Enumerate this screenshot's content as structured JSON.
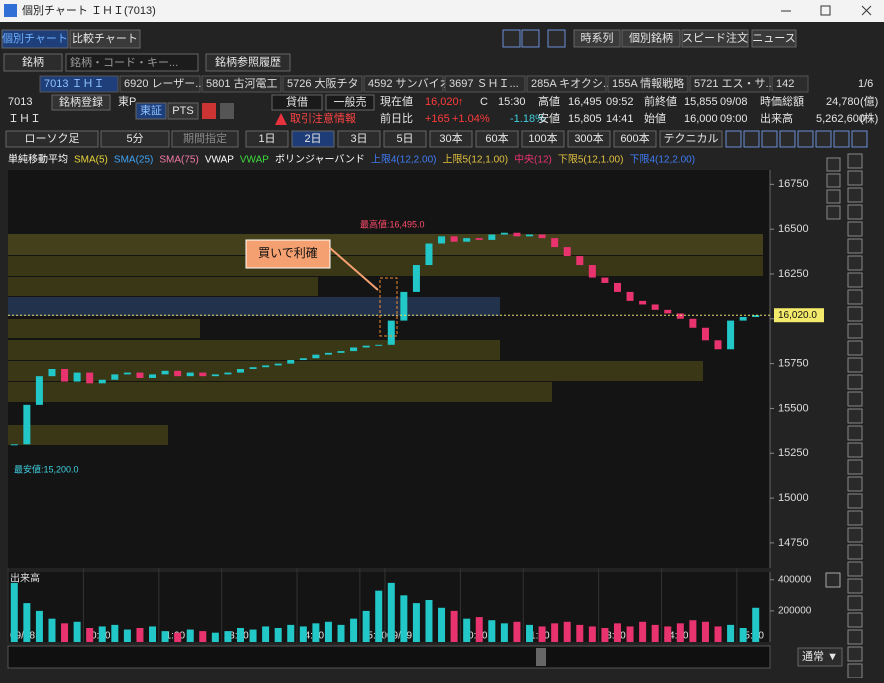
{
  "title_bar": {
    "title": "個別チャート ＩＨＩ(7013)"
  },
  "tabs": [
    "個別チャート",
    "比較チャート"
  ],
  "top_buttons": [
    "時系列",
    "個別銘柄",
    "スピード注文",
    "ニュース"
  ],
  "search": {
    "type": "銘柄",
    "placeholder": "銘柄・コード・キー...",
    "history": "銘柄参照履歴"
  },
  "stock_tabs": [
    "7013 ＩＨＩ",
    "6920 レーザー...",
    "5801 古河電工",
    "5726 大阪チタ",
    "4592 サンバイオ",
    "3697 ＳＨＩ...",
    "285A キオクシ...",
    "155A 情報戦略",
    "5721 エス・サ...",
    "142"
  ],
  "page": "1/6",
  "quote": {
    "code": "7013",
    "name": "ＩＨＩ",
    "register": "銘柄登録",
    "market": "東P",
    "exchange": "東証",
    "pts": "PTS",
    "margin": "貸借",
    "short": "一般売",
    "warning": "取引注意情報",
    "row1": [
      "現在値",
      "16,020",
      "↑",
      "C",
      "15:30",
      "高値",
      "16,495",
      "09:52",
      "前終値",
      "15,855",
      "09/08",
      "時価総額",
      "24,780",
      "(億)"
    ],
    "row2": [
      "前日比",
      "+165",
      "+1.04%",
      "-1.18%",
      "安値",
      "15,805",
      "14:41",
      "始値",
      "16,000",
      "09:00",
      "出来高",
      "5,262,600",
      "(株)"
    ]
  },
  "controls": {
    "chart_type": "ローソク足",
    "interval": "5分",
    "period": "期間指定",
    "ranges": [
      "1日",
      "2日",
      "3日",
      "5日",
      "30本",
      "60本",
      "100本",
      "300本",
      "600本"
    ],
    "selected_range_index": 1,
    "technical": "テクニカル"
  },
  "legend": [
    {
      "label": "単純移動平均",
      "color": "#ffffff"
    },
    {
      "label": "SMA(5)",
      "color": "#e6d33a"
    },
    {
      "label": "SMA(25)",
      "color": "#3fa3f5"
    },
    {
      "label": "SMA(75)",
      "color": "#f07aa8"
    },
    {
      "label": "VWAP",
      "color": "#ffffff"
    },
    {
      "label": "VWAP",
      "color": "#3ddc3d"
    },
    {
      "label": "ボリンジャーバンド",
      "color": "#ffffff"
    },
    {
      "label": "上限4(12,2.00)",
      "color": "#3f7cf5"
    },
    {
      "label": "上限5(12,1.00)",
      "color": "#e0c040"
    },
    {
      "label": "中央(12)",
      "color": "#e8336e"
    },
    {
      "label": "下限5(12,1.00)",
      "color": "#e0c040"
    },
    {
      "label": "下限4(12,2.00)",
      "color": "#3f7cf5"
    }
  ],
  "chart_data": [
    {
      "type": "candlestick",
      "up_color": "#22c8c8",
      "down_color": "#e8336e",
      "categories": [
        "09/08",
        null,
        null,
        null,
        null,
        null,
        "10:00",
        null,
        null,
        null,
        null,
        null,
        "11:00",
        null,
        null,
        null,
        null,
        "13:00",
        null,
        null,
        null,
        null,
        null,
        "14:00",
        null,
        null,
        null,
        null,
        "15:00",
        null,
        "09/09",
        null,
        null,
        null,
        null,
        null,
        "10:00",
        null,
        null,
        null,
        null,
        "11:00",
        null,
        null,
        null,
        null,
        null,
        "13:00",
        null,
        null,
        null,
        null,
        "14:00",
        null,
        null,
        null,
        null,
        null,
        "15:00",
        null
      ],
      "values": [
        15300,
        15520,
        15680,
        15720,
        15650,
        15700,
        15640,
        15660,
        15690,
        15700,
        15670,
        15690,
        15710,
        15680,
        15700,
        15680,
        15690,
        15700,
        15720,
        15730,
        15740,
        15750,
        15770,
        15780,
        15800,
        15810,
        15820,
        15840,
        15850,
        15855,
        15990,
        16150,
        16300,
        16420,
        16460,
        16430,
        16450,
        16440,
        16470,
        16480,
        16460,
        16470,
        16450,
        16400,
        16350,
        16300,
        16230,
        16200,
        16150,
        16100,
        16080,
        16050,
        16030,
        16000,
        15950,
        15880,
        15830,
        15990,
        16010,
        16020
      ],
      "ylim": [
        14610,
        16830
      ],
      "yticks": [
        16750,
        16500,
        16250,
        16000,
        15750,
        15500,
        15250,
        15000,
        14750
      ],
      "high_label": "最高値:16,495.0",
      "low_label": "最安値:15,200.0",
      "note": "買いで利確",
      "current_price": {
        "value": 16020,
        "label": "16,020.0"
      }
    },
    {
      "type": "bar",
      "title": "出来高",
      "values": [
        380000,
        250000,
        200000,
        150000,
        120000,
        130000,
        90000,
        100000,
        110000,
        80000,
        90000,
        100000,
        70000,
        60000,
        80000,
        70000,
        60000,
        70000,
        90000,
        80000,
        100000,
        90000,
        110000,
        100000,
        120000,
        130000,
        110000,
        150000,
        200000,
        330000,
        380000,
        300000,
        250000,
        270000,
        220000,
        200000,
        150000,
        160000,
        140000,
        120000,
        130000,
        110000,
        100000,
        120000,
        130000,
        110000,
        100000,
        90000,
        120000,
        100000,
        130000,
        110000,
        100000,
        120000,
        140000,
        130000,
        100000,
        110000,
        90000,
        220000
      ],
      "ylim": [
        0,
        450000
      ],
      "yticks": [
        400000,
        200000
      ]
    }
  ],
  "scroll": {
    "mode": "通常 ▼"
  }
}
